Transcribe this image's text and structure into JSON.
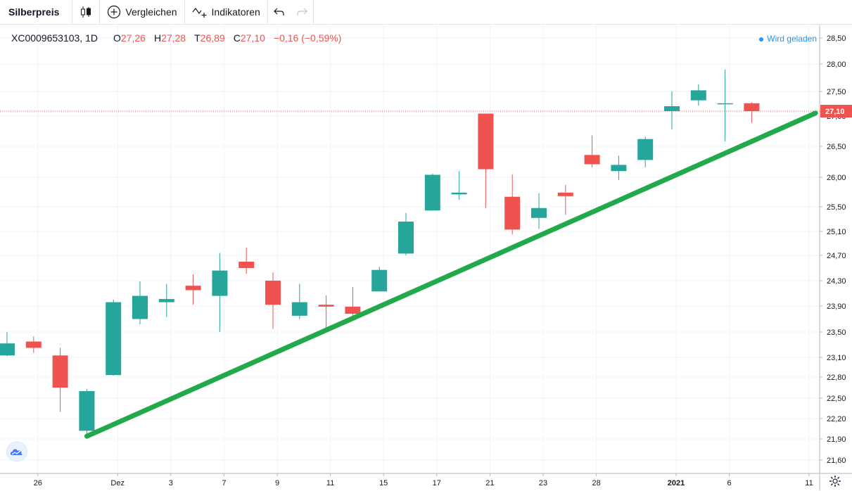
{
  "toolbar": {
    "symbol": "Silberpreis",
    "compare_label": "Vergleichen",
    "indicators_label": "Indikatoren",
    "icons": [
      "candlestick-icon",
      "plus-circle-icon",
      "indicator-icon",
      "undo-icon",
      "redo-icon"
    ]
  },
  "legend": {
    "ticker": "XC0009653103, 1D",
    "open_label": "O",
    "open": "27,26",
    "high_label": "H",
    "high": "27,28",
    "low_label": "T",
    "low": "26,89",
    "close_label": "C",
    "close": "27,10",
    "change": "−0,16 (−0,59%)"
  },
  "status": "Wird geladen",
  "colors": {
    "up": "#26a69a",
    "down": "#ef5350",
    "trendline": "#22a94a",
    "price_line": "#ef5350",
    "status": "#2196f3"
  },
  "chart_data": {
    "type": "candlestick",
    "title": "",
    "xlabel": "",
    "ylabel": "",
    "ylim": [
      21.4,
      28.62
    ],
    "y_ticks": [
      "28,50",
      "28,00",
      "27,50",
      "27,00",
      "26,50",
      "26,00",
      "25,50",
      "25,10",
      "24,70",
      "24,30",
      "23,90",
      "23,50",
      "23,10",
      "22,80",
      "22,50",
      "22,20",
      "21,90",
      "21,60"
    ],
    "y_tick_values": [
      28.5,
      28.0,
      27.5,
      27.0,
      26.5,
      26.0,
      25.5,
      25.1,
      24.7,
      24.3,
      23.9,
      23.5,
      23.1,
      22.8,
      22.5,
      22.2,
      21.9,
      21.6
    ],
    "x_ticks": [
      {
        "label": "26",
        "index": 1,
        "bold": false
      },
      {
        "label": "Dez",
        "index": 4,
        "bold": false
      },
      {
        "label": "3",
        "index": 6,
        "bold": false
      },
      {
        "label": "7",
        "index": 8,
        "bold": false
      },
      {
        "label": "9",
        "index": 10,
        "bold": false
      },
      {
        "label": "11",
        "index": 12,
        "bold": false
      },
      {
        "label": "15",
        "index": 14,
        "bold": false
      },
      {
        "label": "17",
        "index": 16,
        "bold": false
      },
      {
        "label": "21",
        "index": 18,
        "bold": false
      },
      {
        "label": "23",
        "index": 20,
        "bold": false
      },
      {
        "label": "28",
        "index": 22,
        "bold": false
      },
      {
        "label": "2021",
        "index": 25,
        "bold": true
      },
      {
        "label": "6",
        "index": 27,
        "bold": false
      },
      {
        "label": "11",
        "index": 30,
        "bold": false
      }
    ],
    "candles": [
      {
        "o": 23.13,
        "h": 23.5,
        "l": 23.12,
        "c": 23.32
      },
      {
        "o": 23.35,
        "h": 23.43,
        "l": 23.17,
        "c": 23.25
      },
      {
        "o": 23.13,
        "h": 23.25,
        "l": 22.3,
        "c": 22.65
      },
      {
        "o": 22.02,
        "h": 22.63,
        "l": 21.94,
        "c": 22.6
      },
      {
        "o": 22.83,
        "h": 24.0,
        "l": 22.82,
        "c": 23.96
      },
      {
        "o": 23.7,
        "h": 24.29,
        "l": 23.62,
        "c": 24.06
      },
      {
        "o": 23.96,
        "h": 24.25,
        "l": 23.73,
        "c": 24.01
      },
      {
        "o": 24.22,
        "h": 24.4,
        "l": 23.92,
        "c": 24.15
      },
      {
        "o": 24.06,
        "h": 24.74,
        "l": 23.5,
        "c": 24.46
      },
      {
        "o": 24.6,
        "h": 24.83,
        "l": 24.41,
        "c": 24.5
      },
      {
        "o": 24.3,
        "h": 24.43,
        "l": 23.55,
        "c": 23.92
      },
      {
        "o": 23.75,
        "h": 24.25,
        "l": 23.7,
        "c": 23.96
      },
      {
        "o": 23.92,
        "h": 24.07,
        "l": 23.55,
        "c": 23.89
      },
      {
        "o": 23.89,
        "h": 24.2,
        "l": 23.7,
        "c": 23.78
      },
      {
        "o": 24.13,
        "h": 24.52,
        "l": 24.13,
        "c": 24.47
      },
      {
        "o": 24.73,
        "h": 25.4,
        "l": 24.7,
        "c": 25.26
      },
      {
        "o": 25.44,
        "h": 26.06,
        "l": 25.44,
        "c": 26.04
      },
      {
        "o": 25.71,
        "h": 26.1,
        "l": 25.62,
        "c": 25.74
      },
      {
        "o": 27.05,
        "h": 27.05,
        "l": 25.48,
        "c": 26.13
      },
      {
        "o": 25.67,
        "h": 26.05,
        "l": 25.05,
        "c": 25.13
      },
      {
        "o": 25.32,
        "h": 25.73,
        "l": 25.14,
        "c": 25.48
      },
      {
        "o": 25.74,
        "h": 25.87,
        "l": 25.37,
        "c": 25.68
      },
      {
        "o": 26.36,
        "h": 26.68,
        "l": 26.16,
        "c": 26.21
      },
      {
        "o": 26.1,
        "h": 26.35,
        "l": 25.95,
        "c": 26.2
      },
      {
        "o": 26.28,
        "h": 26.66,
        "l": 26.16,
        "c": 26.62
      },
      {
        "o": 27.1,
        "h": 27.5,
        "l": 26.78,
        "c": 27.2
      },
      {
        "o": 27.32,
        "h": 27.63,
        "l": 27.21,
        "c": 27.52
      },
      {
        "o": 27.26,
        "h": 27.9,
        "l": 26.58,
        "c": 27.26
      },
      {
        "o": 27.26,
        "h": 27.28,
        "l": 26.89,
        "c": 27.1
      }
    ],
    "current_price": 27.1,
    "current_price_label": "27,10",
    "trendline": {
      "from": {
        "index": 3,
        "y": 21.94
      },
      "to": {
        "index": 30.4,
        "y": 27.06
      }
    }
  }
}
